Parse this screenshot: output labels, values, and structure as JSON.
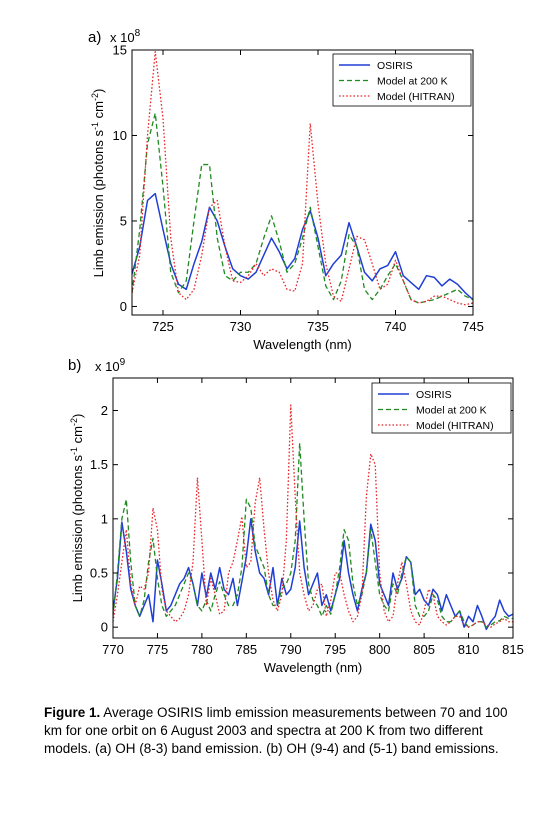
{
  "chart_data": [
    {
      "type": "line",
      "panel_label": "a)",
      "scale_label": "x 10",
      "scale_exponent": "8",
      "xlabel": "Wavelength (nm)",
      "ylabel": "Limb emission (photons s-1 cm-2)",
      "xlim": [
        723,
        745
      ],
      "ylim": [
        -0.5,
        15
      ],
      "xticks": [
        725,
        730,
        735,
        740,
        745
      ],
      "yticks": [
        0,
        5,
        10,
        15
      ],
      "legend_position": "top-right",
      "series": [
        {
          "name": "OSIRIS",
          "color": "#1f3fd6",
          "style": "solid",
          "x": [
            723,
            723.5,
            724,
            724.5,
            725,
            725.5,
            726,
            726.5,
            727,
            727.5,
            728,
            728.5,
            729,
            729.5,
            730,
            730.5,
            731,
            731.5,
            732,
            732.5,
            733,
            733.5,
            734,
            734.5,
            735,
            735.5,
            736,
            736.5,
            737,
            737.5,
            738,
            738.5,
            739,
            739.5,
            740,
            740.5,
            741,
            741.5,
            742,
            742.5,
            743,
            743.5,
            744,
            744.5,
            745
          ],
          "y": [
            1.9,
            3.5,
            6.2,
            6.6,
            4.5,
            2.5,
            1.3,
            1.0,
            2.5,
            3.8,
            5.8,
            5.0,
            3.5,
            2.2,
            1.8,
            1.6,
            2.0,
            3.0,
            4.0,
            3.2,
            2.2,
            2.8,
            4.5,
            5.6,
            4.0,
            1.8,
            2.5,
            3.0,
            4.9,
            3.5,
            2.0,
            1.5,
            2.2,
            2.4,
            3.2,
            1.8,
            1.4,
            1.0,
            1.8,
            1.7,
            1.2,
            1.6,
            1.3,
            0.8,
            0.4
          ]
        },
        {
          "name": "Model at 200 K",
          "color": "#1f8a1f",
          "style": "dashed",
          "x": [
            723,
            723.5,
            724,
            724.5,
            725,
            725.5,
            726,
            726.5,
            727,
            727.5,
            728,
            728.5,
            729,
            729.5,
            730,
            730.5,
            731,
            731.5,
            732,
            732.5,
            733,
            733.5,
            734,
            734.5,
            735,
            735.5,
            736,
            736.5,
            737,
            737.5,
            738,
            738.5,
            739,
            739.5,
            740,
            740.5,
            741,
            741.5,
            742,
            742.5,
            743,
            743.5,
            744,
            744.5,
            745
          ],
          "y": [
            0.8,
            4.5,
            9.5,
            11.3,
            7.0,
            2.0,
            0.8,
            1.5,
            5.0,
            8.3,
            8.3,
            4.0,
            1.8,
            1.5,
            2.0,
            2.0,
            2.5,
            4.0,
            5.3,
            3.8,
            2.0,
            2.5,
            4.0,
            5.8,
            3.5,
            1.2,
            0.4,
            1.5,
            4.2,
            3.5,
            1.0,
            0.4,
            1.0,
            1.8,
            2.5,
            1.5,
            0.4,
            0.2,
            0.3,
            0.4,
            0.6,
            0.8,
            1.0,
            0.6,
            0.4
          ]
        },
        {
          "name": "Model (HITRAN)",
          "color": "#e8262a",
          "style": "dotted",
          "x": [
            723,
            723.5,
            724,
            724.5,
            725,
            725.5,
            726,
            726.5,
            727,
            727.5,
            728,
            728.5,
            729,
            729.5,
            730,
            730.5,
            731,
            731.5,
            732,
            732.5,
            733,
            733.5,
            734,
            734.5,
            735,
            735.5,
            736,
            736.5,
            737,
            737.5,
            738,
            738.5,
            739,
            739.5,
            740,
            740.5,
            741,
            741.5,
            742,
            742.5,
            743,
            743.5,
            744,
            744.5,
            745
          ],
          "y": [
            0.8,
            3.0,
            10.0,
            14.9,
            11.0,
            4.0,
            0.8,
            0.4,
            1.0,
            3.0,
            5.8,
            6.2,
            3.5,
            1.5,
            1.4,
            1.8,
            2.5,
            1.8,
            2.2,
            2.0,
            1.0,
            0.9,
            2.5,
            10.7,
            6.0,
            2.5,
            0.6,
            0.3,
            2.2,
            4.1,
            3.9,
            2.5,
            1.0,
            1.3,
            2.7,
            1.5,
            0.4,
            0.2,
            0.3,
            0.6,
            0.6,
            0.4,
            0.2,
            0.1,
            0.2
          ]
        }
      ]
    },
    {
      "type": "line",
      "panel_label": "b)",
      "scale_label": "x 10",
      "scale_exponent": "9",
      "xlabel": "Wavelength (nm)",
      "ylabel": "Limb emission (photons s-1 cm-2)",
      "xlim": [
        770,
        815
      ],
      "ylim": [
        -0.1,
        2.3
      ],
      "xticks": [
        770,
        775,
        780,
        785,
        790,
        795,
        800,
        805,
        810,
        815
      ],
      "yticks": [
        0,
        0.5,
        1,
        1.5,
        2
      ],
      "legend_position": "top-right",
      "series": [
        {
          "name": "OSIRIS",
          "color": "#1f3fd6",
          "style": "solid",
          "x": [
            770,
            770.5,
            771,
            771.5,
            772,
            772.5,
            773,
            773.5,
            774,
            774.5,
            775,
            775.5,
            776,
            776.5,
            777,
            777.5,
            778,
            778.5,
            779,
            779.5,
            780,
            780.5,
            781,
            781.5,
            782,
            782.5,
            783,
            783.5,
            784,
            784.5,
            785,
            785.5,
            786,
            786.5,
            787,
            787.5,
            788,
            788.5,
            789,
            789.5,
            790,
            790.5,
            791,
            791.5,
            792,
            792.5,
            793,
            793.5,
            794,
            794.5,
            795,
            795.5,
            796,
            796.5,
            797,
            797.5,
            798,
            798.5,
            799,
            799.5,
            800,
            800.5,
            801,
            801.5,
            802,
            802.5,
            803,
            803.5,
            804,
            804.5,
            805,
            805.5,
            806,
            806.5,
            807,
            807.5,
            808,
            808.5,
            809,
            809.5,
            810,
            810.5,
            811,
            811.5,
            812,
            812.5,
            813,
            813.5,
            814,
            814.5,
            815
          ],
          "y": [
            0.15,
            0.45,
            0.97,
            0.7,
            0.35,
            0.2,
            0.1,
            0.2,
            0.3,
            0.05,
            0.62,
            0.4,
            0.15,
            0.2,
            0.3,
            0.4,
            0.45,
            0.55,
            0.4,
            0.2,
            0.5,
            0.28,
            0.5,
            0.35,
            0.55,
            0.35,
            0.3,
            0.45,
            0.2,
            0.42,
            0.65,
            1.0,
            0.7,
            0.5,
            0.45,
            0.3,
            0.55,
            0.2,
            0.45,
            0.3,
            0.35,
            0.55,
            0.98,
            0.55,
            0.3,
            0.4,
            0.5,
            0.2,
            0.3,
            0.15,
            0.3,
            0.45,
            0.8,
            0.5,
            0.3,
            0.15,
            0.35,
            0.5,
            0.95,
            0.8,
            0.4,
            0.3,
            0.2,
            0.5,
            0.35,
            0.45,
            0.65,
            0.6,
            0.3,
            0.35,
            0.25,
            0.2,
            0.35,
            0.3,
            0.15,
            0.3,
            0.2,
            0.1,
            0.15,
            0.0,
            0.1,
            0.05,
            0.2,
            0.1,
            -0.02,
            0.05,
            0.1,
            0.25,
            0.15,
            0.1,
            0.12
          ]
        },
        {
          "name": "Model at 200 K",
          "color": "#1f8a1f",
          "style": "dashed",
          "x": [
            770,
            770.5,
            771,
            771.5,
            772,
            772.5,
            773,
            773.5,
            774,
            774.5,
            775,
            775.5,
            776,
            776.5,
            777,
            777.5,
            778,
            778.5,
            779,
            779.5,
            780,
            780.5,
            781,
            781.5,
            782,
            782.5,
            783,
            783.5,
            784,
            784.5,
            785,
            785.5,
            786,
            786.5,
            787,
            787.5,
            788,
            788.5,
            789,
            789.5,
            790,
            790.5,
            791,
            791.5,
            792,
            792.5,
            793,
            793.5,
            794,
            794.5,
            795,
            795.5,
            796,
            796.5,
            797,
            797.5,
            798,
            798.5,
            799,
            799.5,
            800,
            800.5,
            801,
            801.5,
            802,
            802.5,
            803,
            803.5,
            804,
            804.5,
            805,
            805.5,
            806,
            806.5,
            807,
            807.5,
            808,
            808.5,
            809,
            809.5,
            810,
            810.5,
            811,
            811.5,
            812,
            812.5,
            813,
            813.5,
            814,
            814.5,
            815
          ],
          "y": [
            0.1,
            0.5,
            1.0,
            1.18,
            0.6,
            0.2,
            0.1,
            0.25,
            0.6,
            0.82,
            0.45,
            0.2,
            0.1,
            0.15,
            0.2,
            0.3,
            0.4,
            0.5,
            0.4,
            0.2,
            0.15,
            0.25,
            0.15,
            0.3,
            0.42,
            0.3,
            0.2,
            0.2,
            0.3,
            0.55,
            1.18,
            1.1,
            0.75,
            0.65,
            0.55,
            0.3,
            0.2,
            0.2,
            0.35,
            0.4,
            0.5,
            0.8,
            1.7,
            1.0,
            0.4,
            0.25,
            0.2,
            0.1,
            0.2,
            0.12,
            0.3,
            0.55,
            0.9,
            0.8,
            0.4,
            0.2,
            0.3,
            0.5,
            0.9,
            0.6,
            0.3,
            0.2,
            0.15,
            0.4,
            0.3,
            0.5,
            0.65,
            0.6,
            0.2,
            0.1,
            0.1,
            0.15,
            0.3,
            0.25,
            0.1,
            0.05,
            0.05,
            0.1,
            0.15,
            0.05,
            0.0,
            0.02,
            0.05,
            0.05,
            0.0,
            0.02,
            0.05,
            0.06,
            0.1,
            0.08,
            0.08
          ]
        },
        {
          "name": "Model (HITRAN)",
          "color": "#e8262a",
          "style": "dotted",
          "x": [
            770,
            770.5,
            771,
            771.5,
            772,
            772.5,
            773,
            773.5,
            774,
            774.5,
            775,
            775.5,
            776,
            776.5,
            777,
            777.5,
            778,
            778.5,
            779,
            779.5,
            780,
            780.5,
            781,
            781.5,
            782,
            782.5,
            783,
            783.5,
            784,
            784.5,
            785,
            785.5,
            786,
            786.5,
            787,
            787.5,
            788,
            788.5,
            789,
            789.5,
            790,
            790.5,
            791,
            791.5,
            792,
            792.5,
            793,
            793.5,
            794,
            794.5,
            795,
            795.5,
            796,
            796.5,
            797,
            797.5,
            798,
            798.5,
            799,
            799.5,
            800,
            800.5,
            801,
            801.5,
            802,
            802.5,
            803,
            803.5,
            804,
            804.5,
            805,
            805.5,
            806,
            806.5,
            807,
            807.5,
            808,
            808.5,
            809,
            809.5,
            810,
            810.5,
            811,
            811.5,
            812,
            812.5,
            813,
            813.5,
            814,
            814.5,
            815
          ],
          "y": [
            0.05,
            0.3,
            0.6,
            0.9,
            0.4,
            0.2,
            0.38,
            0.35,
            0.5,
            1.1,
            0.9,
            0.35,
            0.15,
            0.1,
            0.05,
            0.08,
            0.15,
            0.3,
            0.6,
            1.38,
            0.8,
            0.2,
            0.45,
            0.3,
            0.12,
            0.15,
            0.5,
            0.6,
            0.8,
            1.02,
            0.55,
            0.6,
            1.15,
            1.38,
            0.9,
            0.5,
            0.25,
            0.15,
            0.3,
            0.8,
            2.05,
            1.2,
            0.5,
            0.3,
            0.15,
            0.2,
            0.35,
            0.4,
            0.1,
            0.25,
            0.5,
            0.5,
            0.3,
            0.15,
            0.05,
            0.1,
            0.3,
            1.2,
            1.6,
            1.5,
            0.5,
            0.15,
            0.05,
            0.1,
            0.4,
            0.6,
            0.4,
            0.15,
            0.05,
            0.02,
            0.15,
            0.35,
            0.3,
            0.1,
            0.05,
            0.02,
            0.05,
            0.1,
            0.1,
            0.02,
            0.0,
            0.02,
            0.05,
            0.05,
            0.02,
            0.0,
            0.03,
            0.05,
            0.08,
            0.05,
            0.05
          ]
        }
      ]
    }
  ],
  "caption": {
    "bold": "Figure 1.",
    "text": " Average OSIRIS limb emission measurements between 70 and 100 km for one orbit on 6 August 2003 and spectra at 200 K from two different models. (a) OH (8-3) band emission. (b) OH (9-4) and (5-1) band emissions."
  }
}
